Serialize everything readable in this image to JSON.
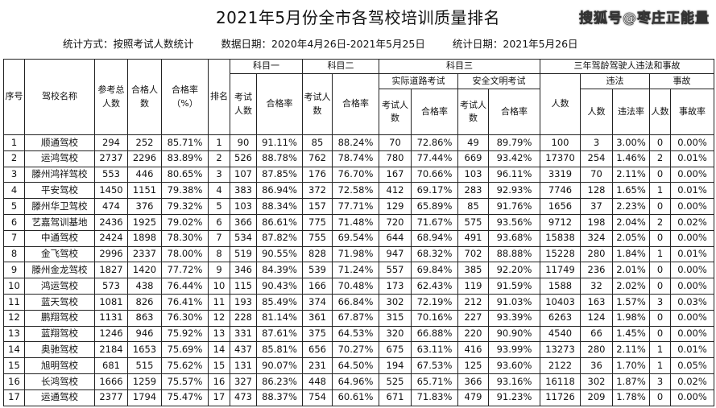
{
  "title": "2021年5月份全市各驾校培训质量排名",
  "meta": {
    "method": "统计方式：按照考试人数统计",
    "data_period": "数据日期：2020年4月26日-2021年5月25日",
    "stat_date": "统计日期：2021年5月26日"
  },
  "headers": {
    "index": "序号",
    "school": "驾校名称",
    "total": "参考总人数",
    "passed": "合格人数",
    "rate": "合格率（%）",
    "rank": "排名",
    "subject1": "科目一",
    "subject2": "科目二",
    "subject3": "科目三",
    "road": "实际道路考试",
    "safety": "安全文明考试",
    "three_year": "三年驾龄驾驶人违法和事故",
    "violation": "违法",
    "accident": "事故",
    "exam_count": "考试人数",
    "exam_count_s1": "考试人数",
    "pass_rate": "合格率",
    "people": "人数",
    "violation_rate": "违法率",
    "acc_people": "人数",
    "accident_rate": "事故率"
  },
  "rows": [
    [
      "1",
      "顺通驾校",
      "294",
      "252",
      "85.71%",
      "1",
      "90",
      "91.11%",
      "85",
      "88.24%",
      "70",
      "72.86%",
      "49",
      "89.79%",
      "100",
      "3",
      "3.00%",
      "0",
      "0.00%"
    ],
    [
      "2",
      "运鸿驾校",
      "2737",
      "2296",
      "83.89%",
      "2",
      "526",
      "88.78%",
      "762",
      "78.74%",
      "780",
      "77.44%",
      "669",
      "93.42%",
      "17370",
      "254",
      "1.46%",
      "2",
      "0.01%"
    ],
    [
      "3",
      "滕州鸿祥驾校",
      "553",
      "446",
      "80.65%",
      "3",
      "107",
      "87.85%",
      "176",
      "76.70%",
      "167",
      "70.66%",
      "103",
      "96.11%",
      "3319",
      "70",
      "2.11%",
      "0",
      "0.00%"
    ],
    [
      "4",
      "平安驾校",
      "1450",
      "1151",
      "79.38%",
      "4",
      "383",
      "86.94%",
      "372",
      "72.58%",
      "412",
      "69.17%",
      "283",
      "92.93%",
      "7746",
      "128",
      "1.65%",
      "1",
      "0.01%"
    ],
    [
      "5",
      "滕州华卫驾校",
      "474",
      "376",
      "79.32%",
      "5",
      "103",
      "88.34%",
      "157",
      "77.71%",
      "129",
      "65.89%",
      "85",
      "91.76%",
      "1656",
      "37",
      "2.23%",
      "0",
      "0.00%"
    ],
    [
      "6",
      "艺嘉驾训基地",
      "2436",
      "1925",
      "79.02%",
      "6",
      "366",
      "86.61%",
      "775",
      "71.48%",
      "720",
      "71.67%",
      "575",
      "93.56%",
      "9712",
      "198",
      "2.04%",
      "2",
      "0.02%"
    ],
    [
      "7",
      "中通驾校",
      "2424",
      "1898",
      "78.30%",
      "7",
      "534",
      "87.82%",
      "755",
      "69.54%",
      "644",
      "68.94%",
      "491",
      "93.68%",
      "15838",
      "324",
      "2.05%",
      "0",
      "0.00%"
    ],
    [
      "8",
      "金飞驾校",
      "2996",
      "2337",
      "78.00%",
      "8",
      "519",
      "90.55%",
      "828",
      "71.98%",
      "947",
      "68.32%",
      "702",
      "88.88%",
      "15228",
      "280",
      "1.84%",
      "1",
      "0.01%"
    ],
    [
      "9",
      "滕州金龙驾校",
      "1827",
      "1420",
      "77.72%",
      "9",
      "346",
      "84.39%",
      "539",
      "71.24%",
      "557",
      "69.84%",
      "385",
      "92.20%",
      "11749",
      "236",
      "2.01%",
      "0",
      "0.00%"
    ],
    [
      "10",
      "鸿运驾校",
      "573",
      "438",
      "76.44%",
      "10",
      "115",
      "90.43%",
      "166",
      "70.48%",
      "173",
      "62.43%",
      "119",
      "91.59%",
      "1588",
      "32",
      "2.02%",
      "0",
      "0.00%"
    ],
    [
      "11",
      "蓝天驾校",
      "1081",
      "826",
      "76.41%",
      "11",
      "193",
      "85.49%",
      "374",
      "66.84%",
      "302",
      "72.19%",
      "212",
      "91.03%",
      "10403",
      "163",
      "1.57%",
      "3",
      "0.03%"
    ],
    [
      "12",
      "鹏翔驾校",
      "1131",
      "863",
      "76.30%",
      "12",
      "228",
      "81.14%",
      "361",
      "67.87%",
      "315",
      "70.16%",
      "227",
      "93.39%",
      "6263",
      "124",
      "1.98%",
      "0",
      "0.00%"
    ],
    [
      "13",
      "蓝翔驾校",
      "1246",
      "946",
      "75.92%",
      "13",
      "331",
      "87.61%",
      "375",
      "64.53%",
      "320",
      "66.88%",
      "220",
      "90.90%",
      "4540",
      "66",
      "1.45%",
      "0",
      "0.00%"
    ],
    [
      "14",
      "奥驰驾校",
      "2184",
      "1653",
      "75.69%",
      "14",
      "437",
      "85.81%",
      "656",
      "70.27%",
      "675",
      "63.11%",
      "416",
      "93.99%",
      "13273",
      "280",
      "2.11%",
      "1",
      "0.01%"
    ],
    [
      "15",
      "旭明驾校",
      "681",
      "515",
      "75.62%",
      "15",
      "131",
      "90.07%",
      "231",
      "64.50%",
      "194",
      "67.53%",
      "125",
      "93.60%",
      "2122",
      "36",
      "1.70%",
      "1",
      "0.05%"
    ],
    [
      "16",
      "长鸿驾校",
      "1666",
      "1259",
      "75.57%",
      "16",
      "327",
      "86.23%",
      "448",
      "64.96%",
      "525",
      "65.71%",
      "366",
      "93.16%",
      "16118",
      "302",
      "1.87%",
      "3",
      "0.02%"
    ],
    [
      "17",
      "运通驾校",
      "2377",
      "1794",
      "75.47%",
      "17",
      "473",
      "88.37%",
      "754",
      "60.61%",
      "671",
      "71.83%",
      "479",
      "91.23%",
      "11726",
      "209",
      "1.78%",
      "0",
      "0.00%"
    ]
  ],
  "watermark": "搜狐号@枣庄正能量"
}
